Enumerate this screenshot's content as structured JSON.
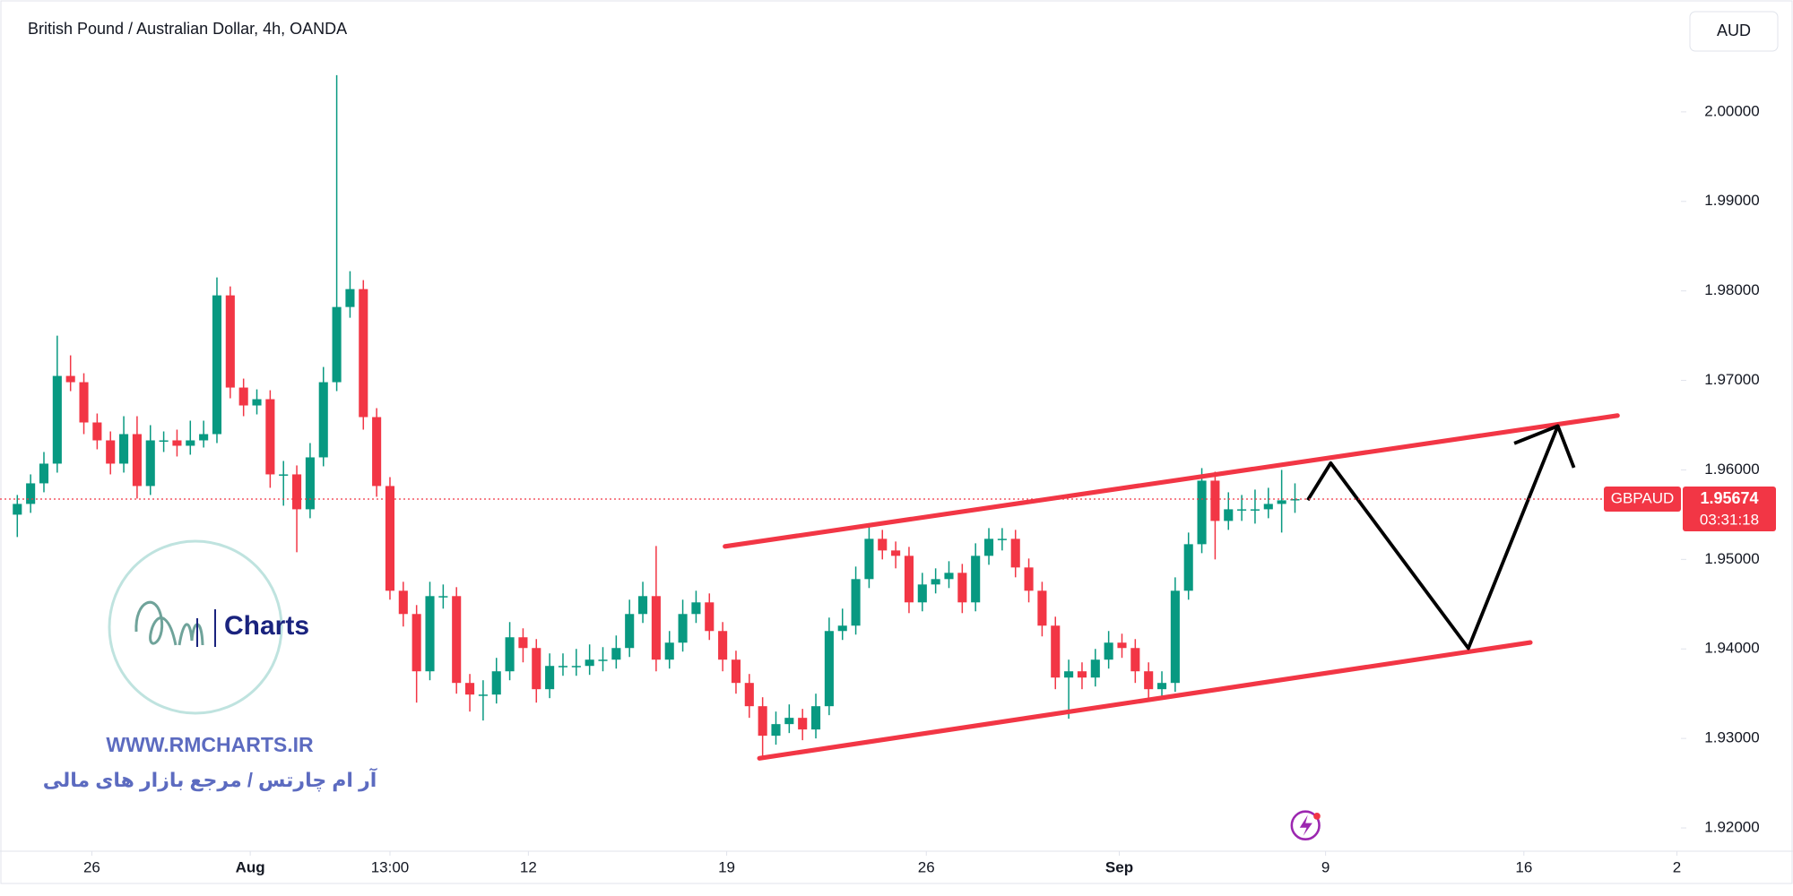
{
  "chart_data": {
    "type": "candlestick",
    "title": "British Pound / Australian Dollar, 4h, OANDA",
    "currency": "AUD",
    "symbol": "GBPAUD",
    "last_price": 1.95674,
    "countdown": "03:31:18",
    "up_color": "#089981",
    "down_color": "#f23645",
    "open": [
      1.955,
      1.9562,
      1.9585,
      1.9607,
      1.9705,
      1.9698,
      1.9653,
      1.9633,
      1.9607,
      1.964,
      1.9582,
      1.9633,
      1.9633,
      1.9627,
      1.9633,
      1.964,
      1.9795,
      1.9692,
      1.9672,
      1.9679,
      1.9595,
      1.9595,
      1.9556,
      1.9614,
      1.9698,
      1.9782,
      1.9802,
      1.9659,
      1.9582,
      1.9465,
      1.9439,
      1.9375,
      1.9459,
      1.9459,
      1.9362,
      1.9349,
      1.9349,
      1.9375,
      1.9413,
      1.9401,
      1.9355,
      1.9381,
      1.9381,
      1.9381,
      1.9388,
      1.9388,
      1.9401,
      1.9439,
      1.9459,
      1.9388,
      1.9407,
      1.9439,
      1.9452,
      1.942,
      1.9388,
      1.9362,
      1.9336,
      1.9303,
      1.9316,
      1.9323,
      1.931,
      1.9336,
      1.942,
      1.9426,
      1.9478,
      1.9523,
      1.951,
      1.9504,
      1.9452,
      1.9472,
      1.9478,
      1.9485,
      1.9452,
      1.9504,
      1.9523,
      1.9523,
      1.9491,
      1.9465,
      1.9426,
      1.9368,
      1.9375,
      1.9368,
      1.9388,
      1.9407,
      1.9401,
      1.9375,
      1.9355,
      1.9362,
      1.9465,
      1.9517,
      1.9588,
      1.9543,
      1.9556,
      1.9556,
      1.9556,
      1.9562,
      1.9566
    ],
    "high": [
      1.9572,
      1.9595,
      1.962,
      1.975,
      1.9728,
      1.9708,
      1.9663,
      1.9643,
      1.966,
      1.966,
      1.965,
      1.9643,
      1.9645,
      1.9655,
      1.9655,
      1.9815,
      1.9805,
      1.9702,
      1.969,
      1.9689,
      1.961,
      1.9605,
      1.963,
      1.9715,
      2.0041,
      1.9822,
      1.9812,
      1.9669,
      1.9592,
      1.9475,
      1.9449,
      1.9475,
      1.9472,
      1.9469,
      1.9372,
      1.9365,
      1.939,
      1.943,
      1.9423,
      1.9411,
      1.9395,
      1.9395,
      1.94,
      1.9405,
      1.9402,
      1.9415,
      1.9455,
      1.9475,
      1.9515,
      1.942,
      1.9455,
      1.9465,
      1.9462,
      1.943,
      1.9398,
      1.9372,
      1.9346,
      1.933,
      1.9338,
      1.9333,
      1.935,
      1.9435,
      1.9445,
      1.9492,
      1.954,
      1.9533,
      1.952,
      1.9514,
      1.9485,
      1.949,
      1.9498,
      1.9495,
      1.9518,
      1.9535,
      1.9535,
      1.9533,
      1.9501,
      1.9475,
      1.9436,
      1.9388,
      1.9385,
      1.94,
      1.942,
      1.9417,
      1.9411,
      1.9385,
      1.9375,
      1.948,
      1.953,
      1.9602,
      1.9598,
      1.9575,
      1.9572,
      1.9578,
      1.958,
      1.96,
      1.9585
    ],
    "low": [
      1.9525,
      1.9552,
      1.9575,
      1.9597,
      1.9688,
      1.964,
      1.9623,
      1.9595,
      1.9597,
      1.9568,
      1.9572,
      1.962,
      1.9615,
      1.9617,
      1.9625,
      1.963,
      1.968,
      1.966,
      1.9662,
      1.958,
      1.956,
      1.9508,
      1.9546,
      1.9604,
      1.9688,
      1.977,
      1.9645,
      1.957,
      1.9455,
      1.9425,
      1.934,
      1.9365,
      1.9445,
      1.935,
      1.933,
      1.932,
      1.9339,
      1.9365,
      1.9385,
      1.934,
      1.9345,
      1.937,
      1.937,
      1.9371,
      1.9375,
      1.9378,
      1.9391,
      1.9429,
      1.9375,
      1.9378,
      1.9397,
      1.9429,
      1.941,
      1.9375,
      1.935,
      1.9323,
      1.9278,
      1.9293,
      1.9306,
      1.9298,
      1.93,
      1.9326,
      1.941,
      1.9416,
      1.9468,
      1.95,
      1.949,
      1.944,
      1.9442,
      1.9462,
      1.9468,
      1.944,
      1.9442,
      1.9494,
      1.951,
      1.948,
      1.9452,
      1.9414,
      1.9355,
      1.9322,
      1.9355,
      1.9358,
      1.9378,
      1.939,
      1.9362,
      1.9342,
      1.9345,
      1.9352,
      1.9455,
      1.9507,
      1.95,
      1.9533,
      1.9543,
      1.954,
      1.9546,
      1.953,
      1.9552
    ],
    "close": [
      1.9562,
      1.9585,
      1.9607,
      1.9705,
      1.9698,
      1.9653,
      1.9633,
      1.9607,
      1.964,
      1.9582,
      1.9633,
      1.9633,
      1.9627,
      1.9633,
      1.964,
      1.9795,
      1.9692,
      1.9672,
      1.9679,
      1.9595,
      1.9595,
      1.9556,
      1.9614,
      1.9698,
      1.9782,
      1.9802,
      1.9659,
      1.9582,
      1.9465,
      1.9439,
      1.9375,
      1.9459,
      1.9459,
      1.9362,
      1.9349,
      1.9349,
      1.9375,
      1.9413,
      1.9401,
      1.9355,
      1.9381,
      1.9381,
      1.9381,
      1.9388,
      1.9388,
      1.9401,
      1.9439,
      1.9459,
      1.9388,
      1.9407,
      1.9439,
      1.9452,
      1.942,
      1.9388,
      1.9362,
      1.9336,
      1.9303,
      1.9316,
      1.9323,
      1.931,
      1.9336,
      1.942,
      1.9426,
      1.9478,
      1.9523,
      1.951,
      1.9504,
      1.9452,
      1.9472,
      1.9478,
      1.9485,
      1.9452,
      1.9504,
      1.9523,
      1.9523,
      1.9491,
      1.9465,
      1.9426,
      1.9368,
      1.9375,
      1.9368,
      1.9388,
      1.9407,
      1.9401,
      1.9375,
      1.9355,
      1.9362,
      1.9465,
      1.9517,
      1.9588,
      1.9543,
      1.9556,
      1.9556,
      1.9556,
      1.9562,
      1.9566,
      1.95674
    ],
    "xlim": [
      -1.3,
      125
    ],
    "xticks": [
      {
        "value": 5.6,
        "label": "26"
      },
      {
        "value": 17.5,
        "label": "Aug"
      },
      {
        "value": 28,
        "label": "13:00"
      },
      {
        "value": 38.4,
        "label": "12"
      },
      {
        "value": 53.3,
        "label": "19"
      },
      {
        "value": 68.3,
        "label": "26"
      },
      {
        "value": 82.8,
        "label": "Sep"
      },
      {
        "value": 98.3,
        "label": "9"
      },
      {
        "value": 113.2,
        "label": "16"
      },
      {
        "value": 124.7,
        "label": "2"
      }
    ],
    "ylim": [
      1.9174,
      2.0125
    ],
    "yticks": [
      {
        "value": 1.92,
        "label": "1.92000"
      },
      {
        "value": 1.93,
        "label": "1.93000"
      },
      {
        "value": 1.94,
        "label": "1.94000"
      },
      {
        "value": 1.95,
        "label": "1.95000"
      },
      {
        "value": 1.96,
        "label": "1.96000"
      },
      {
        "value": 1.97,
        "label": "1.97000"
      },
      {
        "value": 1.98,
        "label": "1.98000"
      },
      {
        "value": 1.99,
        "label": "1.99000"
      },
      {
        "value": 2.0,
        "label": "2.00000"
      }
    ]
  },
  "watermark": {
    "logo_text": "Charts",
    "site": "WWW.RMCHARTS.IR",
    "tagline": "آر ام چارتس / مرجع بازار های مالی"
  }
}
